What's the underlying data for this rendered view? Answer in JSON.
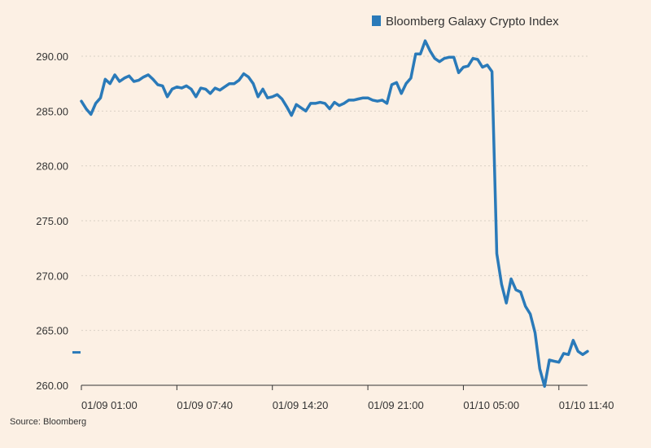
{
  "chart_data": {
    "type": "line",
    "title": "",
    "xlabel": "",
    "ylabel": "",
    "ylim": [
      260,
      290
    ],
    "y_ticks": [
      "260.00",
      "265.00",
      "270.00",
      "275.00",
      "280.00",
      "285.00",
      "290.00"
    ],
    "y_tick_values": [
      260,
      265,
      270,
      275,
      280,
      285,
      290
    ],
    "x_ticks": [
      "01/09 01:00",
      "01/09 07:40",
      "01/09 14:20",
      "01/09 21:00",
      "01/10 05:00",
      "01/10 11:40"
    ],
    "x_tick_index": [
      0,
      20,
      40,
      60,
      80,
      100
    ],
    "grid": "horizontal",
    "legend_position": "top-right",
    "last_value_marker": 263.0,
    "series": [
      {
        "name": "Bloomberg Galaxy Crypto Index",
        "color": "#2a7ab9",
        "values": [
          285.9,
          285.2,
          284.7,
          285.7,
          286.2,
          287.9,
          287.5,
          288.3,
          287.7,
          288.0,
          288.2,
          287.7,
          287.8,
          288.1,
          288.3,
          287.9,
          287.4,
          287.3,
          286.3,
          287.0,
          287.2,
          287.1,
          287.3,
          287.0,
          286.3,
          287.1,
          287.0,
          286.6,
          287.1,
          286.9,
          287.2,
          287.5,
          287.5,
          287.8,
          288.4,
          288.1,
          287.5,
          286.3,
          287.0,
          286.2,
          286.3,
          286.5,
          286.1,
          285.4,
          284.6,
          285.6,
          285.3,
          285.0,
          285.7,
          285.7,
          285.8,
          285.7,
          285.2,
          285.8,
          285.5,
          285.7,
          286.0,
          286.0,
          286.1,
          286.2,
          286.2,
          286.0,
          285.9,
          286.0,
          285.7,
          287.4,
          287.6,
          286.6,
          287.5,
          288.0,
          290.2,
          290.2,
          291.4,
          290.5,
          289.8,
          289.5,
          289.8,
          289.9,
          289.9,
          288.5,
          289.0,
          289.1,
          289.8,
          289.7,
          289.0,
          289.2,
          288.6,
          272.0,
          269.2,
          267.5,
          269.7,
          268.7,
          268.5,
          267.2,
          266.5,
          264.8,
          261.5,
          259.9,
          262.3,
          262.2,
          262.1,
          262.9,
          262.8,
          264.1,
          263.1,
          262.8,
          263.1
        ]
      }
    ]
  },
  "source": "Source: Bloomberg"
}
